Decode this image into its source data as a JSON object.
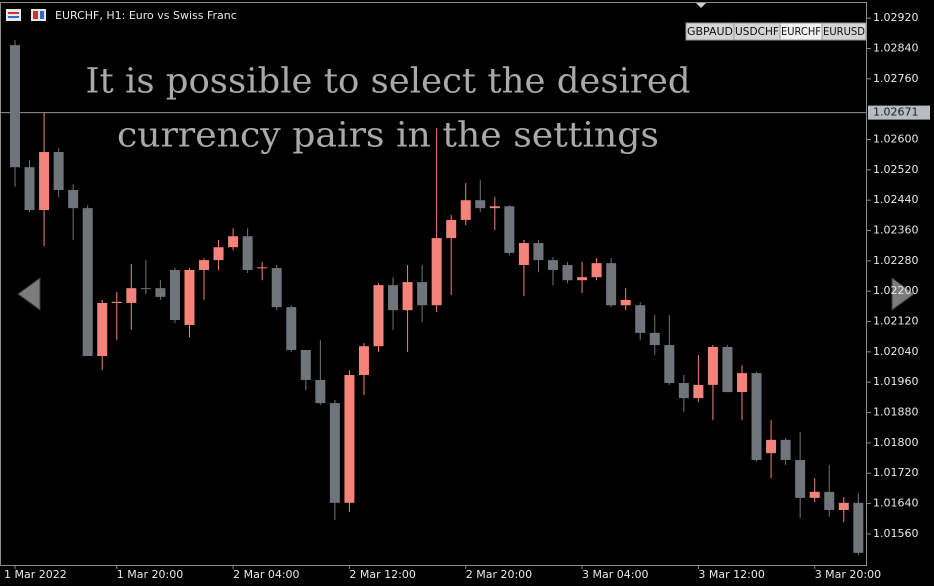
{
  "chart_data": {
    "type": "candlestick",
    "title": "EURCHF, H1:  Euro vs Swiss Franc",
    "symbol_tabs": [
      "GBPAUD",
      "USDCHF",
      "EURCHF",
      "EURUSD"
    ],
    "annotations": [
      "It is possible to select the desired",
      "currency pairs in the settings"
    ],
    "up_color": "#f4837a",
    "down_color": "#70757c",
    "categories": [
      "1 Mar 2022",
      null,
      null,
      null,
      null,
      null,
      null,
      "1 Mar 20:00",
      null,
      null,
      null,
      null,
      null,
      null,
      null,
      "2 Mar 04:00",
      null,
      null,
      null,
      null,
      null,
      null,
      null,
      "2 Mar 12:00",
      null,
      null,
      null,
      null,
      null,
      null,
      null,
      "2 Mar 20:00",
      null,
      null,
      null,
      null,
      null,
      null,
      null,
      "3 Mar 04:00",
      null,
      null,
      null,
      null,
      null,
      null,
      null,
      "3 Mar 12:00",
      null,
      null,
      null,
      null,
      null,
      null,
      null,
      "3 Mar 20:00",
      null,
      null,
      null
    ],
    "open": [
      1.02849,
      1.02527,
      1.02414,
      1.02567,
      1.02467,
      1.02419,
      1.02029,
      1.02169,
      1.02169,
      1.02208,
      1.02208,
      1.02256,
      1.02111,
      1.02256,
      1.02282,
      1.02316,
      1.02345,
      1.02261,
      1.02261,
      1.02158,
      1.02045,
      1.01966,
      1.01905,
      1.01642,
      1.01979,
      1.02055,
      1.02216,
      1.0215,
      1.02224,
      1.02163,
      1.0234,
      1.02388,
      1.0244,
      1.02419,
      1.02424,
      1.02269,
      1.02327,
      1.02282,
      1.02269,
      1.02229,
      1.02237,
      1.02274,
      1.02163,
      1.02163,
      1.0209,
      1.02058,
      1.01958,
      1.01918,
      1.01953,
      1.02053,
      1.01934,
      1.01984,
      1.01773,
      1.01808,
      1.01755,
      1.01655,
      1.01671,
      1.01623,
      1.01642
    ],
    "high": [
      1.02862,
      1.02546,
      1.02672,
      1.02577,
      1.02482,
      1.02427,
      1.02177,
      1.02198,
      1.02272,
      1.02282,
      1.02229,
      1.02261,
      1.02261,
      1.02287,
      1.02335,
      1.02366,
      1.02366,
      1.02277,
      1.02269,
      1.02163,
      1.02045,
      1.02071,
      1.01913,
      1.01992,
      1.02063,
      1.02221,
      1.02237,
      1.02269,
      1.02269,
      1.0263,
      1.02401,
      1.02485,
      1.02493,
      1.02448,
      1.02427,
      1.02335,
      1.02335,
      1.0229,
      1.02277,
      1.02277,
      1.02287,
      1.02287,
      1.02208,
      1.02171,
      1.02137,
      1.02137,
      1.01979,
      1.02032,
      1.02058,
      1.02058,
      1.02005,
      1.01987,
      1.0186,
      1.01813,
      1.01829,
      1.01707,
      1.01742,
      1.01657,
      1.01668
    ],
    "low": [
      1.02475,
      1.02409,
      1.02319,
      1.02448,
      1.02335,
      1.02029,
      1.01992,
      1.02071,
      1.02098,
      1.02192,
      1.02177,
      1.02116,
      1.02079,
      1.02177,
      1.02256,
      1.02308,
      1.02248,
      1.02229,
      1.0215,
      1.0204,
      1.01939,
      1.019,
      1.01597,
      1.01618,
      1.01926,
      1.0204,
      1.02098,
      1.0204,
      1.02119,
      1.02145,
      1.0219,
      1.02374,
      1.02409,
      1.02361,
      1.02295,
      1.02187,
      1.0225,
      1.02216,
      1.02221,
      1.02195,
      1.02229,
      1.02158,
      1.0215,
      1.02071,
      1.02032,
      1.01953,
      1.01881,
      1.01908,
      1.0186,
      1.01934,
      1.0186,
      1.0175,
      1.01707,
      1.01742,
      1.01602,
      1.01644,
      1.01605,
      1.01591,
      1.01504
    ],
    "close": [
      1.02527,
      1.02414,
      1.02567,
      1.02467,
      1.02419,
      1.02029,
      1.02169,
      1.02172,
      1.02208,
      1.02206,
      1.02185,
      1.02124,
      1.02256,
      1.02282,
      1.02316,
      1.02345,
      1.02256,
      1.02263,
      1.02158,
      1.02045,
      1.01966,
      1.01905,
      1.01642,
      1.01979,
      1.02055,
      1.02216,
      1.0215,
      1.02224,
      1.02163,
      1.0234,
      1.02388,
      1.0244,
      1.02419,
      1.02424,
      1.02301,
      1.02327,
      1.02282,
      1.02256,
      1.02229,
      1.02237,
      1.02274,
      1.02163,
      1.02177,
      1.0209,
      1.02058,
      1.01958,
      1.01918,
      1.01953,
      1.02053,
      1.01934,
      1.01984,
      1.01755,
      1.01808,
      1.01755,
      1.01655,
      1.01671,
      1.01623,
      1.01642,
      1.0151
    ],
    "current_price": 1.02671,
    "ylim": [
      1.01478,
      1.0296
    ],
    "yticks": [
      {
        "value": 1.0292,
        "label": "1.02920"
      },
      {
        "value": 1.0284,
        "label": "1.02840"
      },
      {
        "value": 1.0276,
        "label": "1.02760"
      },
      {
        "value": 1.026,
        "label": "1.02600"
      },
      {
        "value": 1.0252,
        "label": "1.02520"
      },
      {
        "value": 1.0244,
        "label": "1.02440"
      },
      {
        "value": 1.0236,
        "label": "1.02360"
      },
      {
        "value": 1.0228,
        "label": "1.02280"
      },
      {
        "value": 1.022,
        "label": "1.02200"
      },
      {
        "value": 1.0212,
        "label": "1.02120"
      },
      {
        "value": 1.0204,
        "label": "1.02040"
      },
      {
        "value": 1.0196,
        "label": "1.01960"
      },
      {
        "value": 1.0188,
        "label": "1.01880"
      },
      {
        "value": 1.018,
        "label": "1.01800"
      },
      {
        "value": 1.0172,
        "label": "1.01720"
      },
      {
        "value": 1.0164,
        "label": "1.01640"
      },
      {
        "value": 1.0156,
        "label": "1.01560"
      }
    ]
  }
}
